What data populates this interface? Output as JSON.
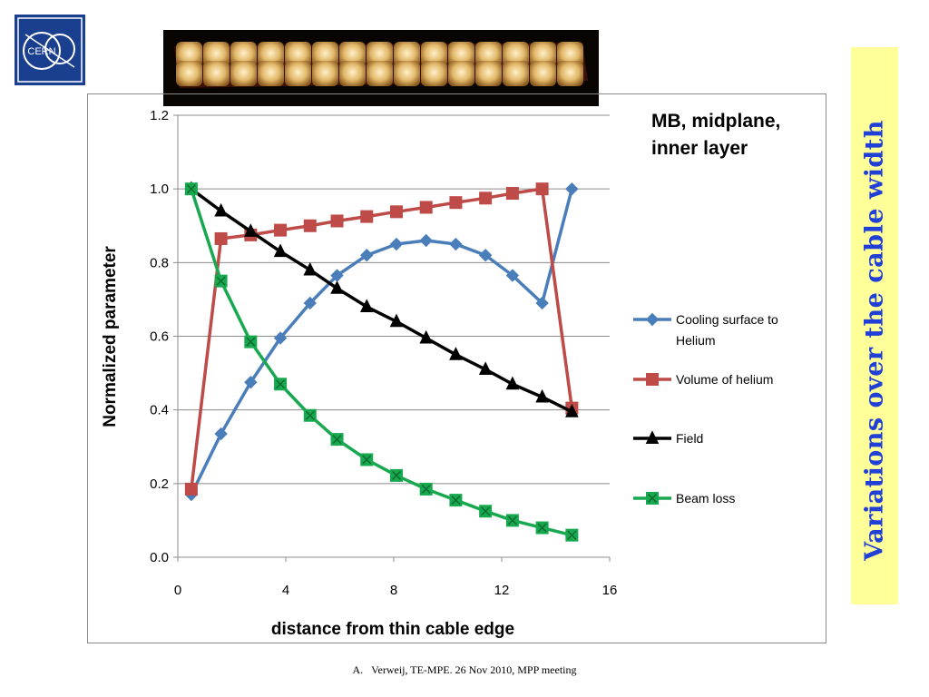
{
  "logo": {
    "text": "CERN"
  },
  "side_title": "Variations over the cable width",
  "footer": "A.   Verweij, TE-MPE. 26 Nov 2010, MPP meeting",
  "colors": {
    "side_title": "#1f3fd6",
    "side_box": "#ffff99",
    "logo_blue": "#1b3f8f"
  },
  "chart_data": {
    "type": "line",
    "title_lines": [
      "MB, midplane,",
      "inner layer"
    ],
    "xlabel": "distance from thin cable edge",
    "ylabel": "Normalized parameter",
    "xlim": [
      0,
      16
    ],
    "ylim": [
      0,
      1.2
    ],
    "x_ticks": [
      "0",
      "4",
      "8",
      "12",
      "16"
    ],
    "x_tick_values": [
      0,
      4,
      8,
      12,
      16
    ],
    "y_ticks": [
      "0.0",
      "0.2",
      "0.4",
      "0.6",
      "0.8",
      "1.0",
      "1.2"
    ],
    "y_tick_values": [
      0,
      0.2,
      0.4,
      0.6,
      0.8,
      1.0,
      1.2
    ],
    "grid": "horizontal",
    "legend_position": "right",
    "x": [
      0.5,
      1.6,
      2.7,
      3.8,
      4.9,
      5.9,
      7.0,
      8.1,
      9.2,
      10.3,
      11.4,
      12.4,
      13.5,
      14.6
    ],
    "series": [
      {
        "name": "Cooling surface to Helium",
        "legend_lines": [
          "Cooling surface to",
          "Helium"
        ],
        "color": "#4a7ebb",
        "marker": "diamond",
        "values": [
          0.17,
          0.335,
          0.475,
          0.595,
          0.69,
          0.765,
          0.82,
          0.85,
          0.86,
          0.85,
          0.82,
          0.765,
          0.69,
          1.0
        ]
      },
      {
        "name": "Volume of helium",
        "legend_lines": [
          "Volume of helium"
        ],
        "color": "#be4b48",
        "marker": "square",
        "values": [
          0.185,
          0.865,
          0.875,
          0.888,
          0.9,
          0.913,
          0.925,
          0.938,
          0.95,
          0.963,
          0.975,
          0.988,
          1.0,
          0.405
        ]
      },
      {
        "name": "Field",
        "legend_lines": [
          "Field"
        ],
        "color": "#000000",
        "marker": "triangle",
        "values": [
          1.0,
          0.94,
          0.885,
          0.83,
          0.78,
          0.73,
          0.68,
          0.64,
          0.595,
          0.55,
          0.51,
          0.47,
          0.435,
          0.395
        ]
      },
      {
        "name": "Beam loss",
        "legend_lines": [
          "Beam loss"
        ],
        "color": "#18a84f",
        "marker": "xsquare",
        "values": [
          1.0,
          0.75,
          0.585,
          0.47,
          0.385,
          0.32,
          0.265,
          0.222,
          0.185,
          0.155,
          0.125,
          0.1,
          0.08,
          0.06
        ]
      }
    ]
  }
}
